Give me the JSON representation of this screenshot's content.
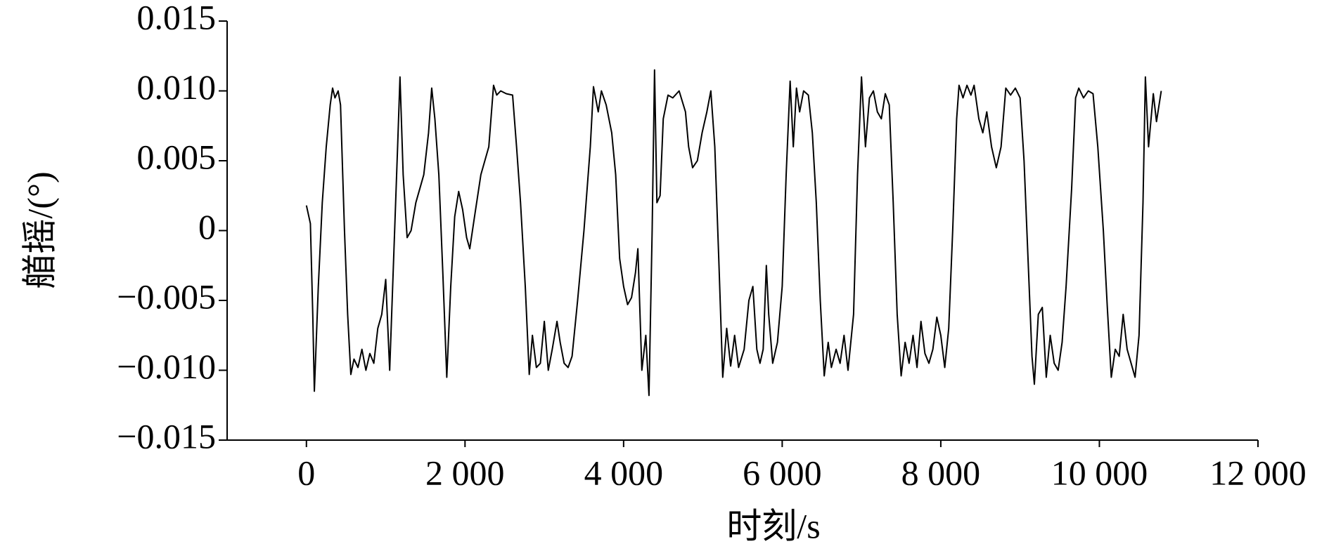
{
  "chart_data": {
    "type": "line",
    "x_label": "时刻/s",
    "y_label": "艏摇/(°)",
    "xlim": [
      -1000,
      12000
    ],
    "ylim": [
      -0.015,
      0.015
    ],
    "xticks": [
      0,
      {
        "value": 2000,
        "label": "2 000"
      },
      {
        "value": 4000,
        "label": "4 000"
      },
      {
        "value": 6000,
        "label": "6 000"
      },
      {
        "value": 8000,
        "label": "8 000"
      },
      {
        "value": 10000,
        "label": "10 000"
      },
      {
        "value": 12000,
        "label": "12 000"
      }
    ],
    "yticks": [
      {
        "value": -0.015,
        "label": "−0.015"
      },
      {
        "value": -0.01,
        "label": "−0.010"
      },
      {
        "value": -0.005,
        "label": "−0.005"
      },
      0,
      0.005,
      {
        "value": 0.01,
        "label": "0.010"
      },
      0.015
    ],
    "x": [
      0,
      50,
      80,
      100,
      150,
      200,
      250,
      300,
      330,
      360,
      400,
      430,
      480,
      520,
      560,
      600,
      650,
      700,
      750,
      800,
      850,
      900,
      950,
      1000,
      1050,
      1100,
      1150,
      1180,
      1220,
      1270,
      1320,
      1380,
      1430,
      1480,
      1540,
      1580,
      1620,
      1670,
      1720,
      1770,
      1820,
      1870,
      1920,
      1970,
      2020,
      2060,
      2120,
      2200,
      2300,
      2360,
      2400,
      2450,
      2520,
      2600,
      2650,
      2700,
      2760,
      2810,
      2850,
      2900,
      2950,
      3000,
      3050,
      3100,
      3160,
      3200,
      3250,
      3300,
      3350,
      3420,
      3500,
      3580,
      3620,
      3680,
      3720,
      3780,
      3850,
      3900,
      3950,
      4000,
      4050,
      4100,
      4150,
      4180,
      4230,
      4280,
      4320,
      4360,
      4390,
      4420,
      4460,
      4500,
      4560,
      4620,
      4700,
      4780,
      4820,
      4870,
      4930,
      4990,
      5050,
      5100,
      5150,
      5200,
      5250,
      5300,
      5350,
      5400,
      5450,
      5520,
      5580,
      5630,
      5680,
      5720,
      5760,
      5800,
      5830,
      5880,
      5940,
      6000,
      6050,
      6100,
      6140,
      6180,
      6220,
      6270,
      6330,
      6380,
      6430,
      6480,
      6530,
      6580,
      6620,
      6680,
      6730,
      6780,
      6830,
      6900,
      6950,
      7000,
      7050,
      7100,
      7150,
      7200,
      7250,
      7300,
      7350,
      7400,
      7450,
      7500,
      7550,
      7600,
      7650,
      7700,
      7750,
      7800,
      7850,
      7900,
      7950,
      8000,
      8050,
      8100,
      8150,
      8200,
      8230,
      8280,
      8330,
      8380,
      8420,
      8480,
      8530,
      8580,
      8640,
      8700,
      8760,
      8820,
      8880,
      8940,
      9000,
      9050,
      9100,
      9150,
      9180,
      9230,
      9280,
      9330,
      9380,
      9430,
      9480,
      9530,
      9580,
      9650,
      9700,
      9740,
      9800,
      9860,
      9920,
      9980,
      10050,
      10100,
      10150,
      10200,
      10250,
      10300,
      10350,
      10400,
      10450,
      10500,
      10550,
      10580,
      10620,
      10680,
      10720,
      10780
    ],
    "series": [
      {
        "color": "#000000",
        "values": [
          0.0018,
          0.0005,
          -0.006,
          -0.0115,
          -0.004,
          0.002,
          0.006,
          0.009,
          0.0102,
          0.0095,
          0.01,
          0.009,
          0,
          -0.006,
          -0.0103,
          -0.0092,
          -0.0098,
          -0.0085,
          -0.01,
          -0.0088,
          -0.0095,
          -0.007,
          -0.006,
          -0.0035,
          -0.01,
          -0.002,
          0.006,
          0.011,
          0.004,
          -0.0005,
          0,
          0.002,
          0.003,
          0.004,
          0.007,
          0.0102,
          0.008,
          0.004,
          -0.003,
          -0.0105,
          -0.004,
          0.001,
          0.0028,
          0.0015,
          -0.0005,
          -0.0013,
          0.001,
          0.004,
          0.006,
          0.0104,
          0.0097,
          0.01,
          0.0098,
          0.0097,
          0.006,
          0.002,
          -0.004,
          -0.0103,
          -0.0075,
          -0.0098,
          -0.0095,
          -0.0065,
          -0.01,
          -0.0085,
          -0.0065,
          -0.008,
          -0.0095,
          -0.0098,
          -0.009,
          -0.005,
          0,
          0.006,
          0.0103,
          0.0085,
          0.01,
          0.009,
          0.007,
          0.004,
          -0.002,
          -0.004,
          -0.0053,
          -0.0048,
          -0.003,
          -0.0013,
          -0.01,
          -0.0075,
          -0.0118,
          0,
          0.0115,
          0.002,
          0.0025,
          0.008,
          0.0097,
          0.0095,
          0.01,
          0.0085,
          0.006,
          0.0045,
          0.005,
          0.007,
          0.0085,
          0.01,
          0.006,
          -0.002,
          -0.0105,
          -0.007,
          -0.0097,
          -0.0075,
          -0.0098,
          -0.0085,
          -0.005,
          -0.004,
          -0.0085,
          -0.0095,
          -0.0085,
          -0.0025,
          -0.006,
          -0.0095,
          -0.008,
          -0.004,
          0.004,
          0.0107,
          0.006,
          0.0102,
          0.0085,
          0.01,
          0.0097,
          0.007,
          0.002,
          -0.005,
          -0.0104,
          -0.008,
          -0.0098,
          -0.0085,
          -0.0095,
          -0.0075,
          -0.01,
          -0.006,
          0.004,
          0.011,
          0.006,
          0.0095,
          0.01,
          0.0085,
          0.008,
          0.0098,
          0.009,
          0.002,
          -0.006,
          -0.0104,
          -0.008,
          -0.0095,
          -0.0075,
          -0.0098,
          -0.0065,
          -0.0088,
          -0.0095,
          -0.0085,
          -0.0062,
          -0.0075,
          -0.0098,
          -0.007,
          0,
          0.008,
          0.0104,
          0.0095,
          0.0104,
          0.0097,
          0.0104,
          0.008,
          0.007,
          0.0085,
          0.006,
          0.0045,
          0.006,
          0.0102,
          0.0097,
          0.0102,
          0.0095,
          0.005,
          -0.002,
          -0.009,
          -0.011,
          -0.006,
          -0.0055,
          -0.0105,
          -0.0075,
          -0.0095,
          -0.01,
          -0.008,
          -0.004,
          0.003,
          0.0095,
          0.0102,
          0.0095,
          0.01,
          0.0098,
          0.006,
          0,
          -0.0055,
          -0.0105,
          -0.0085,
          -0.009,
          -0.006,
          -0.0085,
          -0.0095,
          -0.0105,
          -0.0075,
          0.002,
          0.011,
          0.006,
          0.0098,
          0.0078,
          0.01
        ]
      }
    ]
  }
}
